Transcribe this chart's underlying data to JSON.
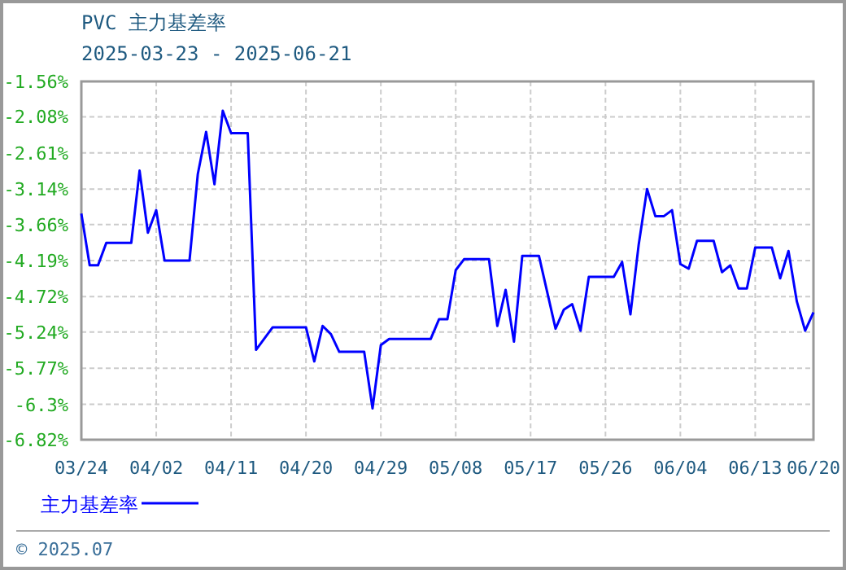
{
  "chart_data": {
    "type": "line",
    "title": "PVC 主力基差率",
    "subtitle": "2025-03-23 - 2025-06-21",
    "annotations": [
      "© 2025.07"
    ],
    "x": [
      "2025-03-24",
      "2025-03-25",
      "2025-03-26",
      "2025-03-27",
      "2025-03-30",
      "2025-03-31",
      "2025-04-01",
      "2025-04-02",
      "2025-04-03",
      "2025-04-06",
      "2025-04-07",
      "2025-04-08",
      "2025-04-09",
      "2025-04-10",
      "2025-04-11",
      "2025-04-13",
      "2025-04-14",
      "2025-04-16",
      "2025-04-20",
      "2025-04-21",
      "2025-04-22",
      "2025-04-23",
      "2025-04-24",
      "2025-04-27",
      "2025-04-28",
      "2025-04-29",
      "2025-04-30",
      "2025-05-05",
      "2025-05-06",
      "2025-05-07",
      "2025-05-08",
      "2025-05-09",
      "2025-05-12",
      "2025-05-13",
      "2025-05-14",
      "2025-05-15",
      "2025-05-16",
      "2025-05-18",
      "2025-05-20",
      "2025-05-21",
      "2025-05-22",
      "2025-05-23",
      "2025-05-24",
      "2025-05-27",
      "2025-05-28",
      "2025-05-29",
      "2025-05-30",
      "2025-05-31",
      "2025-06-01",
      "2025-06-02",
      "2025-06-03",
      "2025-06-04",
      "2025-06-05",
      "2025-06-06",
      "2025-06-08",
      "2025-06-09",
      "2025-06-10",
      "2025-06-11",
      "2025-06-12",
      "2025-06-13",
      "2025-06-15",
      "2025-06-16",
      "2025-06-17",
      "2025-06-18",
      "2025-06-19",
      "2025-06-20"
    ],
    "series": [
      {
        "name": "主力基差率",
        "color": "#0000ff",
        "values": [
          -3.5,
          -4.26,
          -4.26,
          -3.93,
          -3.93,
          -2.87,
          -3.78,
          -3.45,
          -4.19,
          -4.19,
          -2.92,
          -2.3,
          -3.07,
          -1.99,
          -2.32,
          -2.32,
          -5.5,
          -5.17,
          -5.17,
          -5.67,
          -5.15,
          -5.27,
          -5.53,
          -5.53,
          -6.36,
          -5.43,
          -5.34,
          -5.34,
          -5.05,
          -5.05,
          -4.33,
          -4.17,
          -4.17,
          -5.15,
          -4.62,
          -5.38,
          -4.12,
          -4.12,
          -5.19,
          -4.91,
          -4.83,
          -5.22,
          -4.43,
          -4.43,
          -4.21,
          -4.98,
          -3.95,
          -3.14,
          -3.54,
          -3.54,
          -3.45,
          -4.24,
          -4.31,
          -3.9,
          -3.9,
          -4.36,
          -4.26,
          -4.6,
          -4.6,
          -4.0,
          -4.0,
          -4.45,
          -4.05,
          -4.79,
          -5.22,
          -4.95
        ]
      }
    ],
    "xlim": [
      "2025-03-24",
      "2025-06-20"
    ],
    "xticks": [
      {
        "value": "2025-03-24",
        "label": "03/24"
      },
      {
        "value": "2025-04-02",
        "label": "04/02"
      },
      {
        "value": "2025-04-11",
        "label": "04/11"
      },
      {
        "value": "2025-04-20",
        "label": "04/20"
      },
      {
        "value": "2025-04-29",
        "label": "04/29"
      },
      {
        "value": "2025-05-08",
        "label": "05/08"
      },
      {
        "value": "2025-05-17",
        "label": "05/17"
      },
      {
        "value": "2025-05-26",
        "label": "05/26"
      },
      {
        "value": "2025-06-04",
        "label": "06/04"
      },
      {
        "value": "2025-06-13",
        "label": "06/13"
      },
      {
        "value": "2025-06-20",
        "label": "06/20"
      }
    ],
    "ylim": [
      -6.82,
      -1.56
    ],
    "yticks": [
      {
        "value": -1.56,
        "label": "-1.56%"
      },
      {
        "value": -2.08,
        "label": "-2.08%"
      },
      {
        "value": -2.61,
        "label": "-2.61%"
      },
      {
        "value": -3.14,
        "label": "-3.14%"
      },
      {
        "value": -3.66,
        "label": "-3.66%"
      },
      {
        "value": -4.19,
        "label": "-4.19%"
      },
      {
        "value": -4.72,
        "label": "-4.72%"
      },
      {
        "value": -5.24,
        "label": "-5.24%"
      },
      {
        "value": -5.77,
        "label": "-5.77%"
      },
      {
        "value": -6.3,
        "label": "-6.3%"
      },
      {
        "value": -6.82,
        "label": "-6.82%"
      }
    ],
    "grid": true,
    "legend": "bottom left",
    "line_style": "solid",
    "marker": "none"
  }
}
